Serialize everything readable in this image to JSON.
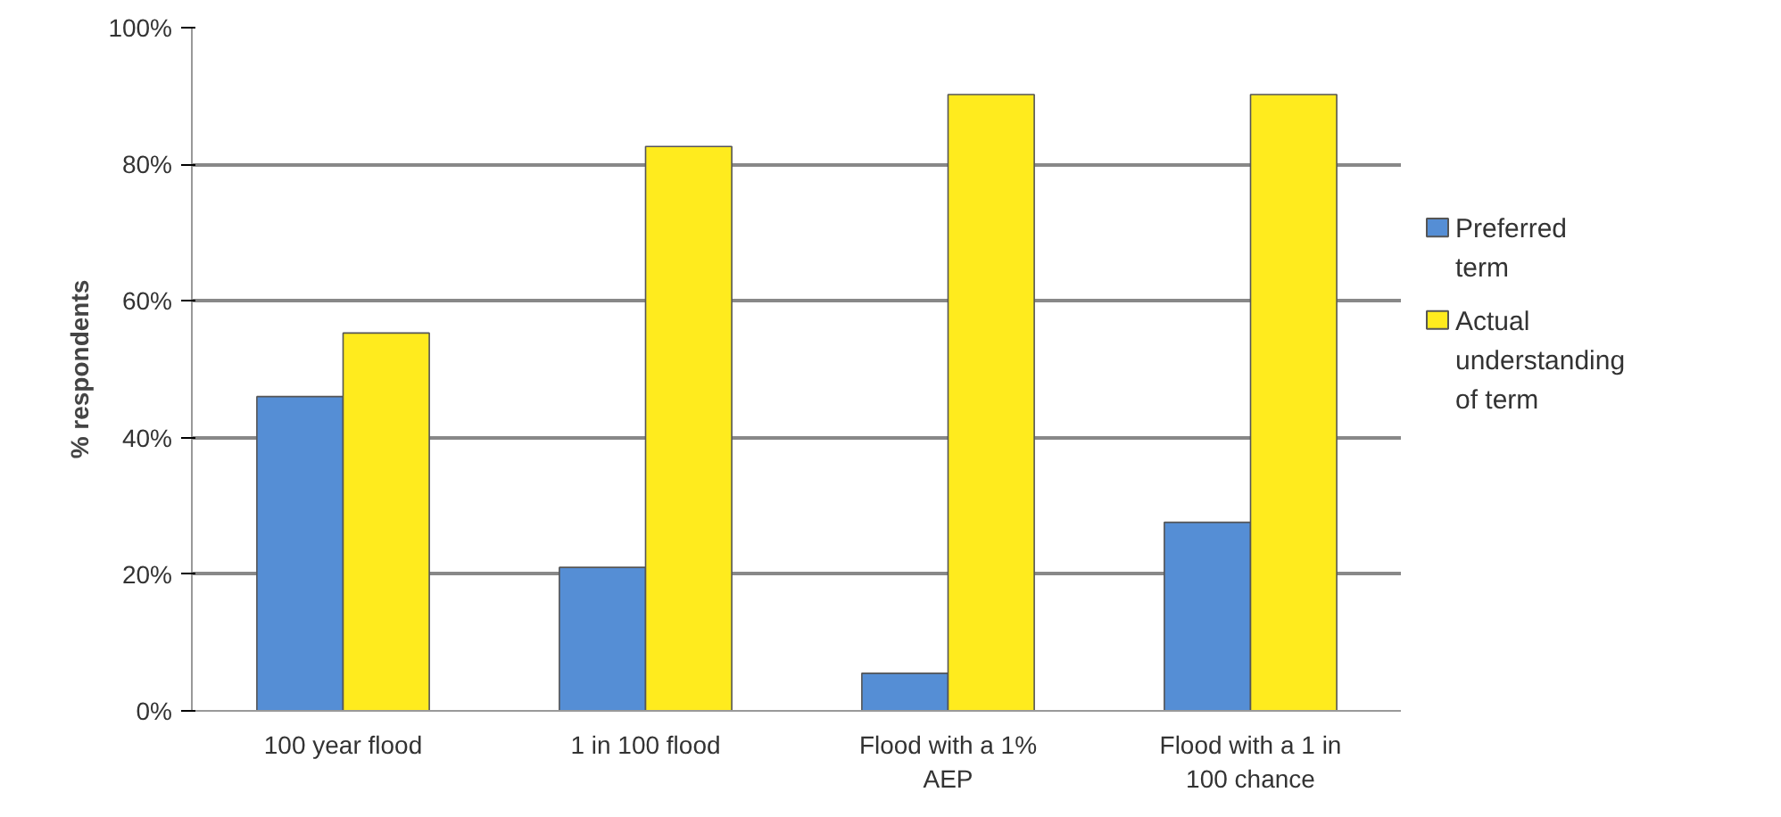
{
  "chart_data": {
    "type": "bar",
    "ylabel": "% respondents",
    "categories": [
      "100 year flood",
      "1 in 100 flood",
      "Flood with a 1% AEP",
      "Flood with a 1 in 100 chance"
    ],
    "series": [
      {
        "name": "Preferred term",
        "color": "#558ed5",
        "values": [
          46,
          21,
          5.5,
          27.6
        ]
      },
      {
        "name": "Actual understanding of term",
        "color": "#ffeb1e",
        "values": [
          55.3,
          82.6,
          90.2,
          90.2
        ]
      }
    ],
    "ylim": [
      0,
      100
    ],
    "yticks": [
      {
        "value": 0,
        "label": "0%"
      },
      {
        "value": 20,
        "label": "20%"
      },
      {
        "value": 40,
        "label": "40%"
      },
      {
        "value": 60,
        "label": "60%"
      },
      {
        "value": 80,
        "label": "80%"
      },
      {
        "value": 100,
        "label": "100%"
      }
    ],
    "grid": "y",
    "legend": "right"
  }
}
